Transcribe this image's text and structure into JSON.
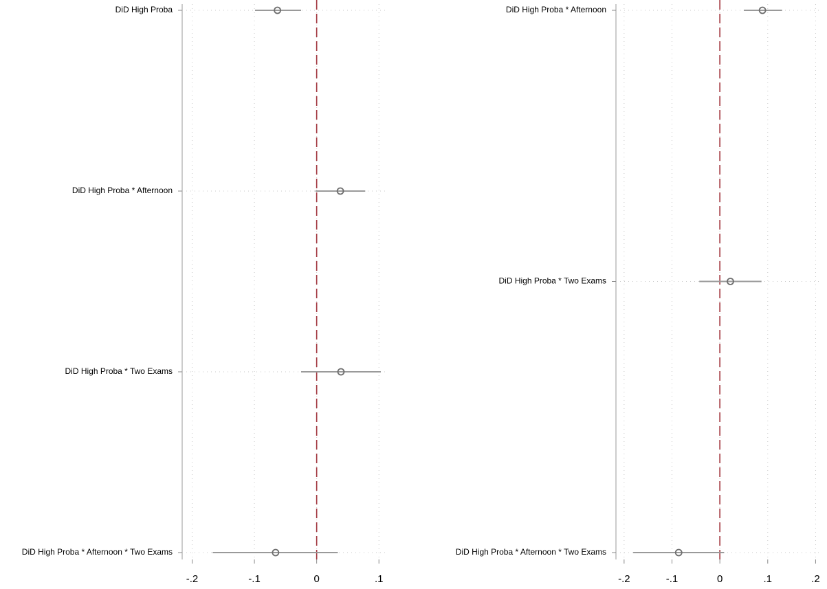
{
  "chart_data": [
    {
      "type": "coef",
      "categories": [
        "DiD High Proba",
        "DiD High Proba * Afternoon",
        "DiD High Proba * Two Exams",
        "DiD High Proba * Afternoon * Two Exams"
      ],
      "values": [
        -0.063,
        0.038,
        0.039,
        -0.066
      ],
      "lower": [
        -0.099,
        -0.002,
        -0.025,
        -0.167
      ],
      "upper": [
        -0.025,
        0.078,
        0.103,
        0.034
      ],
      "xlim": [
        -0.216,
        0.113
      ],
      "xticks": [
        {
          "value": -0.2,
          "label": "-.2"
        },
        {
          "value": -0.1,
          "label": "-.1"
        },
        0,
        {
          "value": 0.1,
          "label": ".1"
        }
      ],
      "refline": 0,
      "refline_color": "#a0333b",
      "color": "#6e6e6e",
      "ci_color": "#9a9a9a",
      "grid": true
    },
    {
      "type": "coef",
      "categories": [
        "DiD High Proba * Afternoon",
        "DiD High Proba * Two Exams",
        "DiD High Proba * Afternoon * Two Exams"
      ],
      "values": [
        0.089,
        0.022,
        -0.086
      ],
      "lower": [
        0.05,
        -0.043,
        -0.181
      ],
      "upper": [
        0.13,
        0.087,
        0.009
      ],
      "xlim": [
        -0.217,
        0.208
      ],
      "xticks": [
        {
          "value": -0.2,
          "label": "-.2"
        },
        {
          "value": -0.1,
          "label": "-.1"
        },
        0,
        {
          "value": 0.1,
          "label": ".1"
        },
        {
          "value": 0.2,
          "label": ".2"
        }
      ],
      "refline": 0,
      "refline_color": "#a0333b",
      "color": "#6e6e6e",
      "ci_color": "#9a9a9a",
      "grid": true
    }
  ]
}
